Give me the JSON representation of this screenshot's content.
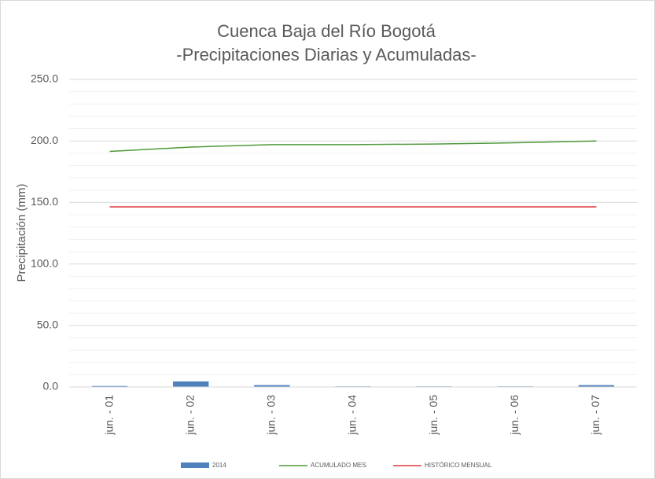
{
  "chart_data": {
    "type": "bar",
    "title": "Cuenca Baja del Río Bogotá",
    "subtitle": "-Precipitaciones Diarias y Acumuladas-",
    "y_label": "Precipitación (mm)",
    "categories": [
      "jun. - 01",
      "jun. - 02",
      "jun. - 03",
      "jun. - 04",
      "jun. - 05",
      "jun. - 06",
      "jun. - 07"
    ],
    "series": [
      {
        "name": "2014",
        "type": "bar",
        "color": "#4f81bd",
        "values": [
          0.8,
          4.5,
          1.5,
          0.5,
          0.5,
          0.5,
          1.5
        ]
      },
      {
        "name": "ACUMULADO MES",
        "type": "line",
        "color": "#4e9a3a",
        "values": [
          191.5,
          195,
          197,
          197,
          197.5,
          198.5,
          200
        ]
      },
      {
        "name": "HISTÓRICO MENSUAL",
        "type": "line",
        "color": "#e0393e",
        "values": [
          146.4,
          146.4,
          146.4,
          146.4,
          146.4,
          146.4,
          146.4
        ]
      }
    ],
    "ylim": [
      0,
      250
    ],
    "yticks": [
      {
        "value": 0,
        "label": "0.0"
      },
      {
        "value": 50,
        "label": "50.0"
      },
      {
        "value": 100,
        "label": "100.0"
      },
      {
        "value": 150,
        "label": "150.0"
      },
      {
        "value": 200,
        "label": "200.0"
      },
      {
        "value": 250,
        "label": "250.0"
      }
    ],
    "yminorticks": [
      10,
      20,
      30,
      40,
      60,
      70,
      80,
      90,
      110,
      120,
      130,
      140,
      160,
      170,
      180,
      190,
      210,
      220,
      230,
      240
    ],
    "grid": true,
    "legend": "bottom"
  }
}
